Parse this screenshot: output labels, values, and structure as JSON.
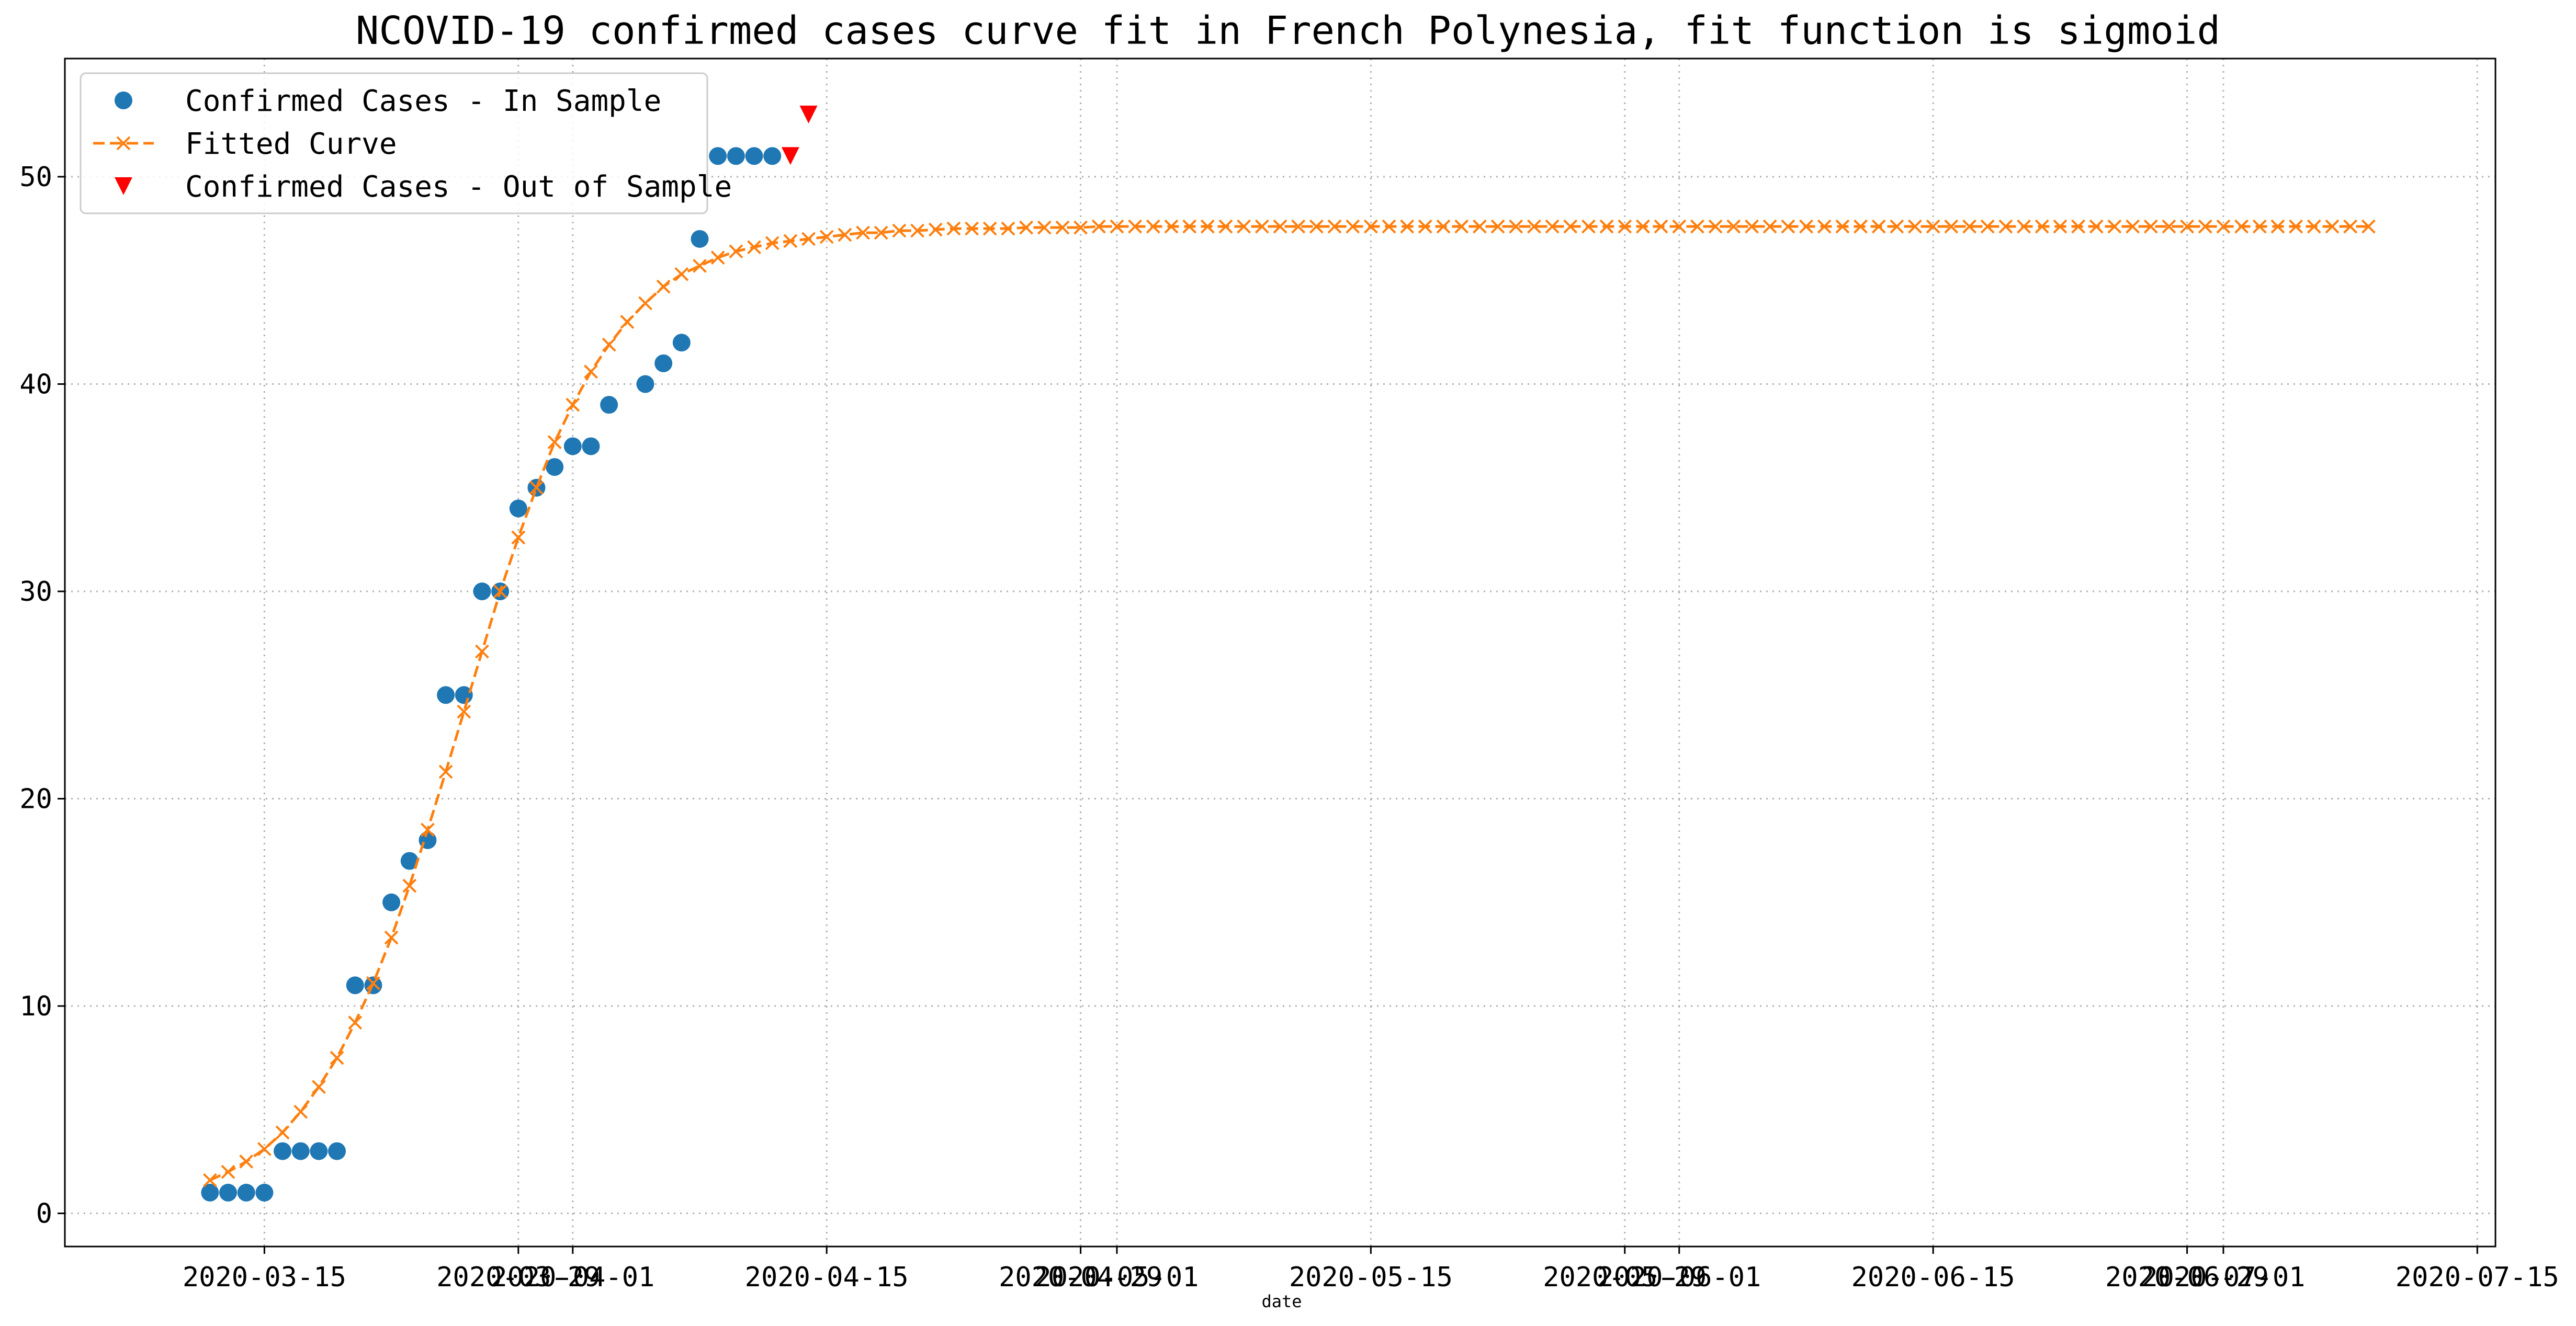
{
  "chart_data": {
    "type": "scatter",
    "title": "NCOVID-19 confirmed cases curve fit in French Polynesia, fit function is sigmoid",
    "xlabel": "date",
    "ylabel": "",
    "x_type": "date",
    "xlim": [
      "2020-03-04",
      "2020-07-16"
    ],
    "ylim": [
      -1.6,
      55.7
    ],
    "grid": true,
    "grid_style": "dotted",
    "legend_position": "top-left",
    "x_ticks": [
      "2020-03-15",
      "2020-03-29",
      "2020-04-01",
      "2020-04-15",
      "2020-04-29",
      "2020-05-01",
      "2020-05-15",
      "2020-05-29",
      "2020-06-01",
      "2020-06-15",
      "2020-06-29",
      "2020-07-01",
      "2020-07-15"
    ],
    "y_ticks": [
      0,
      10,
      20,
      30,
      40,
      50
    ],
    "series": [
      {
        "name": "Confirmed Cases - In Sample",
        "kind": "scatter",
        "marker": "circle",
        "color": "#1f77b4",
        "x": [
          "2020-03-12",
          "2020-03-13",
          "2020-03-14",
          "2020-03-15",
          "2020-03-16",
          "2020-03-17",
          "2020-03-18",
          "2020-03-19",
          "2020-03-20",
          "2020-03-21",
          "2020-03-22",
          "2020-03-23",
          "2020-03-24",
          "2020-03-25",
          "2020-03-26",
          "2020-03-27",
          "2020-03-28",
          "2020-03-29",
          "2020-03-30",
          "2020-03-31",
          "2020-04-01",
          "2020-04-02",
          "2020-04-03",
          "2020-04-05",
          "2020-04-06",
          "2020-04-07",
          "2020-04-08",
          "2020-04-09",
          "2020-04-10",
          "2020-04-11",
          "2020-04-12"
        ],
        "y": [
          1,
          1,
          1,
          1,
          3,
          3,
          3,
          3,
          11,
          11,
          15,
          17,
          18,
          25,
          25,
          30,
          30,
          34,
          35,
          36,
          37,
          37,
          39,
          40,
          41,
          42,
          47,
          51,
          51,
          51,
          51
        ]
      },
      {
        "name": "Fitted Curve",
        "kind": "line",
        "marker": "x",
        "line_style": "dashed",
        "color": "#ff7f0e",
        "x_start": "2020-03-12",
        "x_step_days": 1,
        "y": [
          1.6,
          2.0,
          2.5,
          3.1,
          3.9,
          4.9,
          6.1,
          7.5,
          9.2,
          11.1,
          13.3,
          15.8,
          18.5,
          21.3,
          24.2,
          27.1,
          30.0,
          32.6,
          35.0,
          37.2,
          39.0,
          40.6,
          41.9,
          43.0,
          43.9,
          44.7,
          45.3,
          45.7,
          46.1,
          46.4,
          46.6,
          46.8,
          46.9,
          47.0,
          47.1,
          47.2,
          47.3,
          47.3,
          47.4,
          47.4,
          47.45,
          47.5,
          47.5,
          47.5,
          47.5,
          47.55,
          47.55,
          47.55,
          47.55,
          47.6,
          47.6,
          47.6,
          47.6,
          47.6,
          47.6,
          47.6,
          47.6,
          47.6,
          47.6,
          47.6,
          47.6,
          47.6,
          47.6,
          47.6,
          47.6,
          47.6,
          47.6,
          47.6,
          47.6,
          47.6,
          47.6,
          47.6,
          47.6,
          47.6,
          47.6,
          47.6,
          47.6,
          47.6,
          47.6,
          47.6,
          47.6,
          47.6,
          47.6,
          47.6,
          47.6,
          47.6,
          47.6,
          47.6,
          47.6,
          47.6,
          47.6,
          47.6,
          47.6,
          47.6,
          47.6,
          47.6,
          47.6,
          47.6,
          47.6,
          47.6,
          47.6,
          47.6,
          47.6,
          47.6,
          47.6,
          47.6,
          47.6,
          47.6,
          47.6,
          47.6,
          47.6,
          47.6,
          47.6,
          47.6,
          47.6,
          47.6,
          47.6,
          47.6,
          47.6,
          47.6
        ]
      },
      {
        "name": "Confirmed Cases - Out of Sample",
        "kind": "scatter",
        "marker": "triangle-down",
        "color": "#ff0000",
        "x": [
          "2020-04-13",
          "2020-04-14"
        ],
        "y": [
          51,
          53
        ]
      }
    ]
  }
}
